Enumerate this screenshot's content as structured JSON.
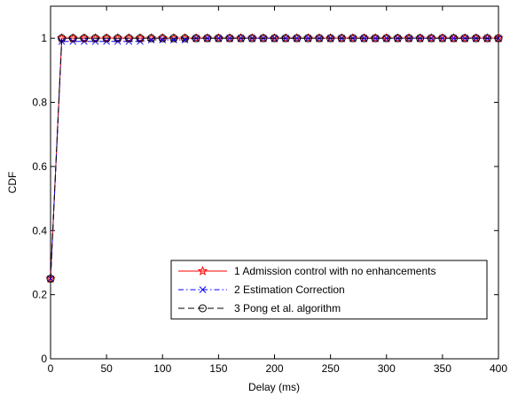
{
  "chart_data": {
    "type": "line",
    "title": "",
    "xlabel": "Delay (ms)",
    "ylabel": "CDF",
    "xlim": [
      0,
      400
    ],
    "ylim": [
      0,
      1.1
    ],
    "xticks": [
      0,
      50,
      100,
      150,
      200,
      250,
      300,
      350,
      400
    ],
    "yticks": [
      0,
      0.2,
      0.4,
      0.6,
      0.8,
      1
    ],
    "xtick_labels": [
      "0",
      "50",
      "100",
      "150",
      "200",
      "250",
      "300",
      "350",
      "400"
    ],
    "ytick_labels": [
      "0",
      "0.2",
      "0.4",
      "0.6",
      "0.8",
      "1"
    ],
    "grid": false,
    "legend_position": "lower-right",
    "series": [
      {
        "name": "1 Admission control with no enhancements",
        "color": "#ff0000",
        "line_style": "solid",
        "marker": "star",
        "x": [
          0,
          10,
          20,
          30,
          40,
          50,
          60,
          70,
          80,
          90,
          100,
          110,
          120,
          130,
          140,
          150,
          160,
          170,
          180,
          190,
          200,
          210,
          220,
          230,
          240,
          250,
          260,
          270,
          280,
          290,
          300,
          310,
          320,
          330,
          340,
          350,
          360,
          370,
          380,
          390,
          400
        ],
        "y": [
          0.25,
          1,
          1,
          1,
          1,
          1,
          1,
          1,
          1,
          1,
          1,
          1,
          1,
          1,
          1,
          1,
          1,
          1,
          1,
          1,
          1,
          1,
          1,
          1,
          1,
          1,
          1,
          1,
          1,
          1,
          1,
          1,
          1,
          1,
          1,
          1,
          1,
          1,
          1,
          1,
          1
        ]
      },
      {
        "name": "2 Estimation Correction",
        "color": "#0000ff",
        "line_style": "dashdot",
        "marker": "x",
        "x": [
          0,
          10,
          20,
          30,
          40,
          50,
          60,
          70,
          80,
          90,
          100,
          110,
          120,
          130,
          140,
          150,
          160,
          170,
          180,
          190,
          200,
          210,
          220,
          230,
          240,
          250,
          260,
          270,
          280,
          290,
          300,
          310,
          320,
          330,
          340,
          350,
          360,
          370,
          380,
          390,
          400
        ],
        "y": [
          0.25,
          0.99,
          0.99,
          0.99,
          0.99,
          0.99,
          0.99,
          0.99,
          0.99,
          0.995,
          0.995,
          0.995,
          0.995,
          1,
          1,
          1,
          1,
          1,
          1,
          1,
          1,
          1,
          1,
          1,
          1,
          1,
          1,
          1,
          1,
          1,
          1,
          1,
          1,
          1,
          1,
          1,
          1,
          1,
          1,
          1,
          1
        ]
      },
      {
        "name": "3 Pong et al. algorithm",
        "color": "#000000",
        "line_style": "dashed",
        "marker": "circle",
        "x": [
          0,
          10,
          20,
          30,
          40,
          50,
          60,
          70,
          80,
          90,
          100,
          110,
          120,
          130,
          140,
          150,
          160,
          170,
          180,
          190,
          200,
          210,
          220,
          230,
          240,
          250,
          260,
          270,
          280,
          290,
          300,
          310,
          320,
          330,
          340,
          350,
          360,
          370,
          380,
          390,
          400
        ],
        "y": [
          0.25,
          1,
          1,
          1,
          1,
          1,
          1,
          1,
          1,
          1,
          1,
          1,
          1,
          1,
          1,
          1,
          1,
          1,
          1,
          1,
          1,
          1,
          1,
          1,
          1,
          1,
          1,
          1,
          1,
          1,
          1,
          1,
          1,
          1,
          1,
          1,
          1,
          1,
          1,
          1,
          1
        ]
      }
    ]
  }
}
